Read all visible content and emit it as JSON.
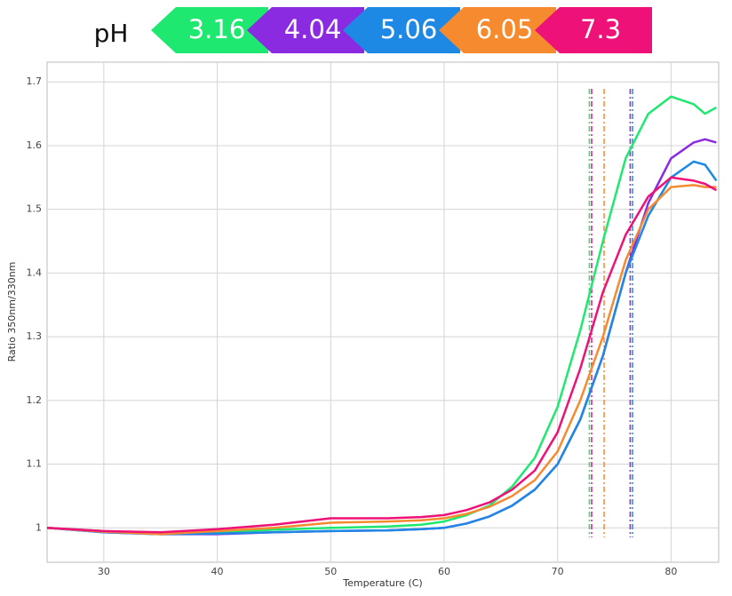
{
  "chart_data": {
    "type": "line",
    "legend_title": "pH",
    "x_label": "Temperature (C)",
    "y_label": "Ratio 350nm/330nm",
    "x": [
      25,
      30,
      35,
      40,
      45,
      50,
      55,
      58,
      60,
      62,
      64,
      66,
      68,
      70,
      72,
      74,
      76,
      78,
      80,
      82,
      83,
      84
    ],
    "series": [
      {
        "name": "3.16",
        "color": "#1ee86f",
        "tm": 72.8,
        "values": [
          1.0,
          0.995,
          0.99,
          0.993,
          0.997,
          1.0,
          1.002,
          1.005,
          1.01,
          1.02,
          1.035,
          1.065,
          1.11,
          1.19,
          1.31,
          1.45,
          1.58,
          1.65,
          1.677,
          1.665,
          1.65,
          1.66
        ]
      },
      {
        "name": "4.04",
        "color": "#8a2be2",
        "tm": 76.4,
        "values": [
          1.0,
          0.993,
          0.99,
          0.99,
          0.993,
          0.995,
          0.996,
          0.998,
          1.0,
          1.007,
          1.018,
          1.035,
          1.06,
          1.1,
          1.17,
          1.27,
          1.4,
          1.51,
          1.58,
          1.605,
          1.61,
          1.605
        ]
      },
      {
        "name": "5.06",
        "color": "#1e88e5",
        "tm": 76.6,
        "values": [
          1.0,
          0.993,
          0.99,
          0.991,
          0.993,
          0.995,
          0.996,
          0.998,
          1.0,
          1.007,
          1.018,
          1.035,
          1.06,
          1.1,
          1.17,
          1.27,
          1.4,
          1.49,
          1.55,
          1.575,
          1.57,
          1.545
        ]
      },
      {
        "name": "6.05",
        "color": "#f58a2f",
        "tm": 74.1,
        "values": [
          1.0,
          0.994,
          0.99,
          0.995,
          1.0,
          1.008,
          1.01,
          1.012,
          1.015,
          1.022,
          1.033,
          1.05,
          1.075,
          1.12,
          1.2,
          1.3,
          1.42,
          1.5,
          1.535,
          1.538,
          1.535,
          1.535
        ]
      },
      {
        "name": "7.3",
        "color": "#ee1177",
        "tm": 73.0,
        "values": [
          1.0,
          0.995,
          0.993,
          0.998,
          1.005,
          1.015,
          1.015,
          1.017,
          1.02,
          1.028,
          1.04,
          1.06,
          1.09,
          1.15,
          1.25,
          1.37,
          1.46,
          1.52,
          1.55,
          1.545,
          1.54,
          1.53
        ]
      }
    ],
    "xlim": [
      25,
      84.2
    ],
    "ylim": [
      0.946,
      1.731
    ],
    "xticks": [
      30,
      40,
      50,
      60,
      70,
      80
    ],
    "yticks": [
      1,
      1.1,
      1.2,
      1.3,
      1.4,
      1.5,
      1.6,
      1.7
    ],
    "grid": true
  }
}
